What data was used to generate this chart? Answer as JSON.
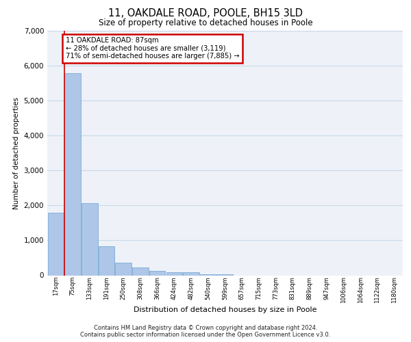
{
  "title": "11, OAKDALE ROAD, POOLE, BH15 3LD",
  "subtitle": "Size of property relative to detached houses in Poole",
  "xlabel": "Distribution of detached houses by size in Poole",
  "ylabel": "Number of detached properties",
  "bar_labels": [
    "17sqm",
    "75sqm",
    "133sqm",
    "191sqm",
    "250sqm",
    "308sqm",
    "366sqm",
    "424sqm",
    "482sqm",
    "540sqm",
    "599sqm",
    "657sqm",
    "715sqm",
    "773sqm",
    "831sqm",
    "889sqm",
    "947sqm",
    "1006sqm",
    "1064sqm",
    "1122sqm",
    "1180sqm"
  ],
  "bar_values": [
    1800,
    5780,
    2060,
    830,
    370,
    230,
    130,
    90,
    80,
    30,
    30,
    0,
    0,
    0,
    0,
    0,
    0,
    0,
    0,
    0,
    0
  ],
  "bar_color": "#aec6e8",
  "bar_edge_color": "#7aadd4",
  "property_line_color": "#cc0000",
  "property_line_xidx": 1,
  "annotation_text": "11 OAKDALE ROAD: 87sqm\n← 28% of detached houses are smaller (3,119)\n71% of semi-detached houses are larger (7,885) →",
  "annotation_box_facecolor": "#ffffff",
  "annotation_box_edgecolor": "#cc0000",
  "ylim": [
    0,
    7000
  ],
  "yticks": [
    0,
    1000,
    2000,
    3000,
    4000,
    5000,
    6000,
    7000
  ],
  "grid_color": "#c8d8e8",
  "bg_color": "#eef2f8",
  "footer_line1": "Contains HM Land Registry data © Crown copyright and database right 2024.",
  "footer_line2": "Contains public sector information licensed under the Open Government Licence v3.0."
}
